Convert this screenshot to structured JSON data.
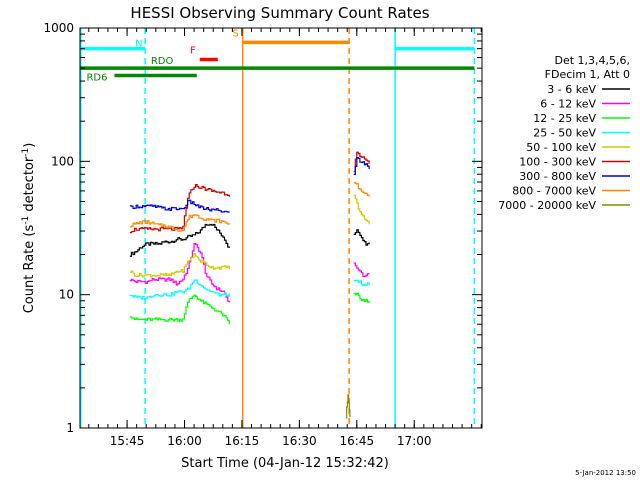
{
  "chart_data": {
    "type": "line",
    "title": "HESSI Observing Summary Count Rates",
    "xlabel": "Start Time (04-Jan-12 15:32:42)",
    "ylabel_main": "Count Rate (s",
    "ylabel_sup1": "-1",
    "ylabel_mid": " detector",
    "ylabel_sup2": "-1",
    "ylabel_end": ")",
    "footer_date": "5-Jan-2012 13:50",
    "y_scale": "log",
    "ylim": [
      1,
      1000
    ],
    "xlim_minutes": [
      0,
      105
    ],
    "x_ticks": [
      {
        "m": 12.3,
        "label": "15:45"
      },
      {
        "m": 27.3,
        "label": "16:00"
      },
      {
        "m": 42.3,
        "label": "16:15"
      },
      {
        "m": 57.3,
        "label": "16:30"
      },
      {
        "m": 72.3,
        "label": "16:45"
      },
      {
        "m": 87.3,
        "label": "17:00"
      }
    ],
    "y_ticks": [
      {
        "v": 1,
        "label": "1"
      },
      {
        "v": 10,
        "label": "10"
      },
      {
        "v": 100,
        "label": "100"
      },
      {
        "v": 1000,
        "label": "1000"
      }
    ],
    "legend": {
      "position": "right",
      "header": [
        "Det 1,3,4,5,6,",
        "FDecim 1, Att 0"
      ]
    },
    "series": [
      {
        "name": "3 - 6 keV",
        "color": "#000000",
        "seg1": {
          "x0": 13.0,
          "x1": 39.0,
          "values": [
            20,
            21,
            23,
            24,
            24,
            24,
            25,
            25,
            26,
            26,
            27,
            28,
            30,
            34,
            34,
            30,
            27,
            22
          ]
        },
        "seg2": {
          "x0": 71.5,
          "x1": 75.5,
          "values": [
            28,
            30,
            27,
            25,
            24,
            24
          ]
        }
      },
      {
        "name": "6 - 12 keV",
        "color": "#ff00ff",
        "seg1": {
          "x0": 13.0,
          "x1": 39.0,
          "values": [
            13,
            12.5,
            12.5,
            12.5,
            13,
            13,
            13,
            13,
            12,
            13,
            16,
            24,
            21,
            14,
            12,
            11,
            10.5,
            8.5
          ]
        },
        "seg2": {
          "x0": 71.5,
          "x1": 75.5,
          "values": [
            17,
            16,
            15,
            14,
            14,
            14
          ]
        }
      },
      {
        "name": "12 - 25 keV",
        "color": "#00ff00",
        "seg1": {
          "x0": 13.0,
          "x1": 39.0,
          "values": [
            7,
            6.5,
            6.5,
            6.5,
            6.5,
            6.5,
            6.5,
            6.5,
            6.5,
            6.5,
            9,
            10,
            9,
            8.5,
            8,
            7.5,
            7,
            6
          ]
        },
        "seg2": {
          "x0": 71.5,
          "x1": 75.5,
          "values": [
            10,
            10,
            9.5,
            9,
            9,
            9
          ]
        }
      },
      {
        "name": "25 - 50 keV",
        "color": "#00ffff",
        "seg1": {
          "x0": 13.0,
          "x1": 39.0,
          "values": [
            10,
            9.5,
            9.5,
            9.5,
            10,
            10,
            10,
            10,
            10.5,
            10.5,
            11,
            13,
            12,
            11,
            10.5,
            10,
            10,
            10
          ]
        },
        "seg2": {
          "x0": 71.5,
          "x1": 75.5,
          "values": [
            13,
            13,
            12.5,
            12,
            12,
            12
          ]
        }
      },
      {
        "name": "50 - 100 keV",
        "color": "#cccc00",
        "seg1": {
          "x0": 13.0,
          "x1": 39.0,
          "values": [
            15,
            14,
            14,
            14,
            14,
            14,
            14,
            14,
            15,
            15,
            18,
            20,
            18,
            17,
            16,
            16,
            16,
            16
          ]
        },
        "seg2": {
          "x0": 71.5,
          "x1": 75.5,
          "values": [
            55,
            48,
            42,
            38,
            36,
            34
          ]
        }
      },
      {
        "name": "100 - 300 keV",
        "color": "#cc0000",
        "seg1": {
          "x0": 13.0,
          "x1": 39.0,
          "values": [
            30,
            31,
            31,
            31,
            31,
            31,
            31,
            31,
            31,
            31,
            55,
            66,
            64,
            62,
            60,
            59,
            58,
            56
          ]
        },
        "seg2": {
          "x0": 71.5,
          "x1": 75.5,
          "values": [
            85,
            118,
            112,
            108,
            104,
            98
          ]
        }
      },
      {
        "name": "300 - 800 keV",
        "color": "#0000cc",
        "seg1": {
          "x0": 13.0,
          "x1": 39.0,
          "values": [
            45,
            46,
            46,
            46,
            46,
            45,
            44,
            44,
            44,
            44,
            50,
            48,
            45,
            44,
            43,
            43,
            42,
            41
          ]
        },
        "seg2": {
          "x0": 71.5,
          "x1": 75.5,
          "values": [
            80,
            105,
            100,
            97,
            95,
            90
          ]
        }
      },
      {
        "name": "800 - 7000 keV",
        "color": "#ff8800",
        "seg1": {
          "x0": 13.0,
          "x1": 39.0,
          "values": [
            33,
            34,
            35,
            35,
            34,
            33,
            33,
            32,
            31,
            30,
            38,
            40,
            38,
            37,
            36,
            36,
            35,
            34
          ]
        },
        "seg2": {
          "x0": 71.5,
          "x1": 75.5,
          "values": [
            70,
            66,
            62,
            60,
            58,
            56
          ]
        }
      },
      {
        "name": "7000 - 20000 keV",
        "color": "#888800",
        "seg1": {
          "x0": 69.5,
          "x1": 70.5,
          "values": [
            1.2,
            1.8,
            1.2
          ]
        }
      }
    ],
    "state_bars": [
      {
        "label": "N",
        "color": "#00ffff",
        "y": 700,
        "segments": [
          [
            0,
            17
          ],
          [
            82.3,
            103
          ]
        ]
      },
      {
        "label": "S",
        "color": "#ff8800",
        "y": 780,
        "segments": [
          [
            42.5,
            70.3
          ]
        ]
      },
      {
        "label": "F",
        "color": "#ff0000",
        "y": 580,
        "segments": [
          [
            31.3,
            36
          ]
        ]
      },
      {
        "label": "RDO",
        "color": "#008800",
        "y": 500,
        "segments": [
          [
            0,
            103
          ]
        ]
      },
      {
        "label": "RD6",
        "color": "#008800",
        "y": 440,
        "segments": [
          [
            9,
            30.5
          ]
        ]
      }
    ],
    "vlines": [
      {
        "m": 0.2,
        "color": "#00ffff",
        "style": "solid"
      },
      {
        "m": 17.0,
        "color": "#00ffff",
        "style": "dashed"
      },
      {
        "m": 42.5,
        "color": "#ff8800",
        "style": "solid"
      },
      {
        "m": 70.3,
        "color": "#ff8800",
        "style": "dashed"
      },
      {
        "m": 82.3,
        "color": "#00ffff",
        "style": "solid"
      },
      {
        "m": 103.0,
        "color": "#00ffff",
        "style": "dashed"
      }
    ]
  }
}
